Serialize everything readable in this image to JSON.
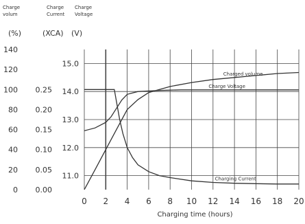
{
  "chart_data": {
    "type": "line",
    "xlabel": "Charging time (hours)",
    "x_ticks": [
      0,
      2,
      4,
      6,
      8,
      10,
      12,
      14,
      16,
      18,
      20
    ],
    "xlim": [
      0,
      20
    ],
    "axes": [
      {
        "header": [
          "Charge",
          "volum"
        ],
        "unit": "(%)",
        "ticks": [
          0,
          20,
          40,
          60,
          80,
          100,
          120,
          140
        ],
        "range": [
          0,
          140
        ]
      },
      {
        "header": [
          "Charge",
          "Current"
        ],
        "unit": "(XCA)",
        "ticks": [
          0,
          0.05,
          0.1,
          0.15,
          0.2,
          0.25
        ],
        "range": [
          0,
          0.35
        ]
      },
      {
        "header": [
          "Charge",
          "Voltage"
        ],
        "unit": "(V)",
        "ticks": [
          11.0,
          12.0,
          13.0,
          14.0,
          15.0
        ],
        "range": [
          10.5,
          15.5
        ]
      }
    ],
    "series": [
      {
        "name": "Charged volume",
        "axis": 0,
        "x": [
          0,
          1,
          2,
          3,
          4,
          5,
          6,
          7,
          8,
          10,
          12,
          14,
          16,
          18,
          20
        ],
        "y": [
          0,
          20,
          40,
          60,
          80,
          90,
          97,
          100,
          103,
          107,
          110,
          112,
          114,
          116,
          117
        ]
      },
      {
        "name": "Charge Voltage",
        "axis": 2,
        "x": [
          0,
          1,
          2,
          2.5,
          3,
          3.5,
          4,
          5,
          6,
          7,
          8,
          9,
          10,
          12,
          14,
          16,
          18,
          20
        ],
        "y": [
          12.6,
          12.7,
          12.9,
          13.1,
          13.4,
          13.7,
          13.9,
          14.0,
          14.02,
          14.04,
          14.05,
          14.06,
          14.06,
          14.06,
          14.06,
          14.06,
          14.06,
          14.06
        ]
      },
      {
        "name": "Charging Current",
        "axis": 1,
        "x": [
          0,
          1,
          2,
          2.8,
          3,
          3.3,
          3.6,
          4,
          4.5,
          5,
          6,
          7,
          8,
          10,
          12,
          14,
          16,
          18,
          20
        ],
        "y": [
          0.25,
          0.25,
          0.25,
          0.25,
          0.22,
          0.175,
          0.14,
          0.105,
          0.08,
          0.062,
          0.045,
          0.035,
          0.03,
          0.022,
          0.018,
          0.016,
          0.015,
          0.014,
          0.014
        ]
      }
    ],
    "grid": true
  },
  "colors": {
    "line": "#333333",
    "grid": "#444444",
    "text": "#333333",
    "background": "#ffffff"
  }
}
